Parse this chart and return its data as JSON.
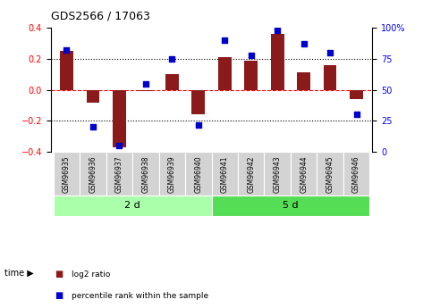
{
  "title": "GDS2566 / 17063",
  "samples": [
    "GSM96935",
    "GSM96936",
    "GSM96937",
    "GSM96938",
    "GSM96939",
    "GSM96940",
    "GSM96941",
    "GSM96942",
    "GSM96943",
    "GSM96944",
    "GSM96945",
    "GSM96946"
  ],
  "log2_ratio": [
    0.25,
    -0.08,
    -0.37,
    -0.01,
    0.1,
    -0.16,
    0.21,
    0.19,
    0.36,
    0.11,
    0.16,
    -0.06
  ],
  "percentile_rank": [
    82,
    20,
    5,
    55,
    75,
    22,
    90,
    78,
    98,
    87,
    80,
    30
  ],
  "groups": [
    {
      "label": "2 d",
      "start": 0,
      "end": 5
    },
    {
      "label": "5 d",
      "start": 6,
      "end": 11
    }
  ],
  "group_colors": [
    "#aaffaa",
    "#55dd55"
  ],
  "ylim_left": [
    -0.4,
    0.4
  ],
  "ylim_right": [
    0,
    100
  ],
  "yticks_left": [
    -0.4,
    -0.2,
    0.0,
    0.2,
    0.4
  ],
  "yticks_right": [
    0,
    25,
    50,
    75,
    100
  ],
  "bar_color": "#8B1A1A",
  "dot_color": "#0000CD",
  "dashed_zero_color": "#ff0000",
  "dotted_lines": [
    -0.2,
    0.2
  ],
  "legend_bar_label": "log2 ratio",
  "legend_dot_label": "percentile rank within the sample",
  "bar_width": 0.5,
  "sample_box_color": "#d3d3d3"
}
